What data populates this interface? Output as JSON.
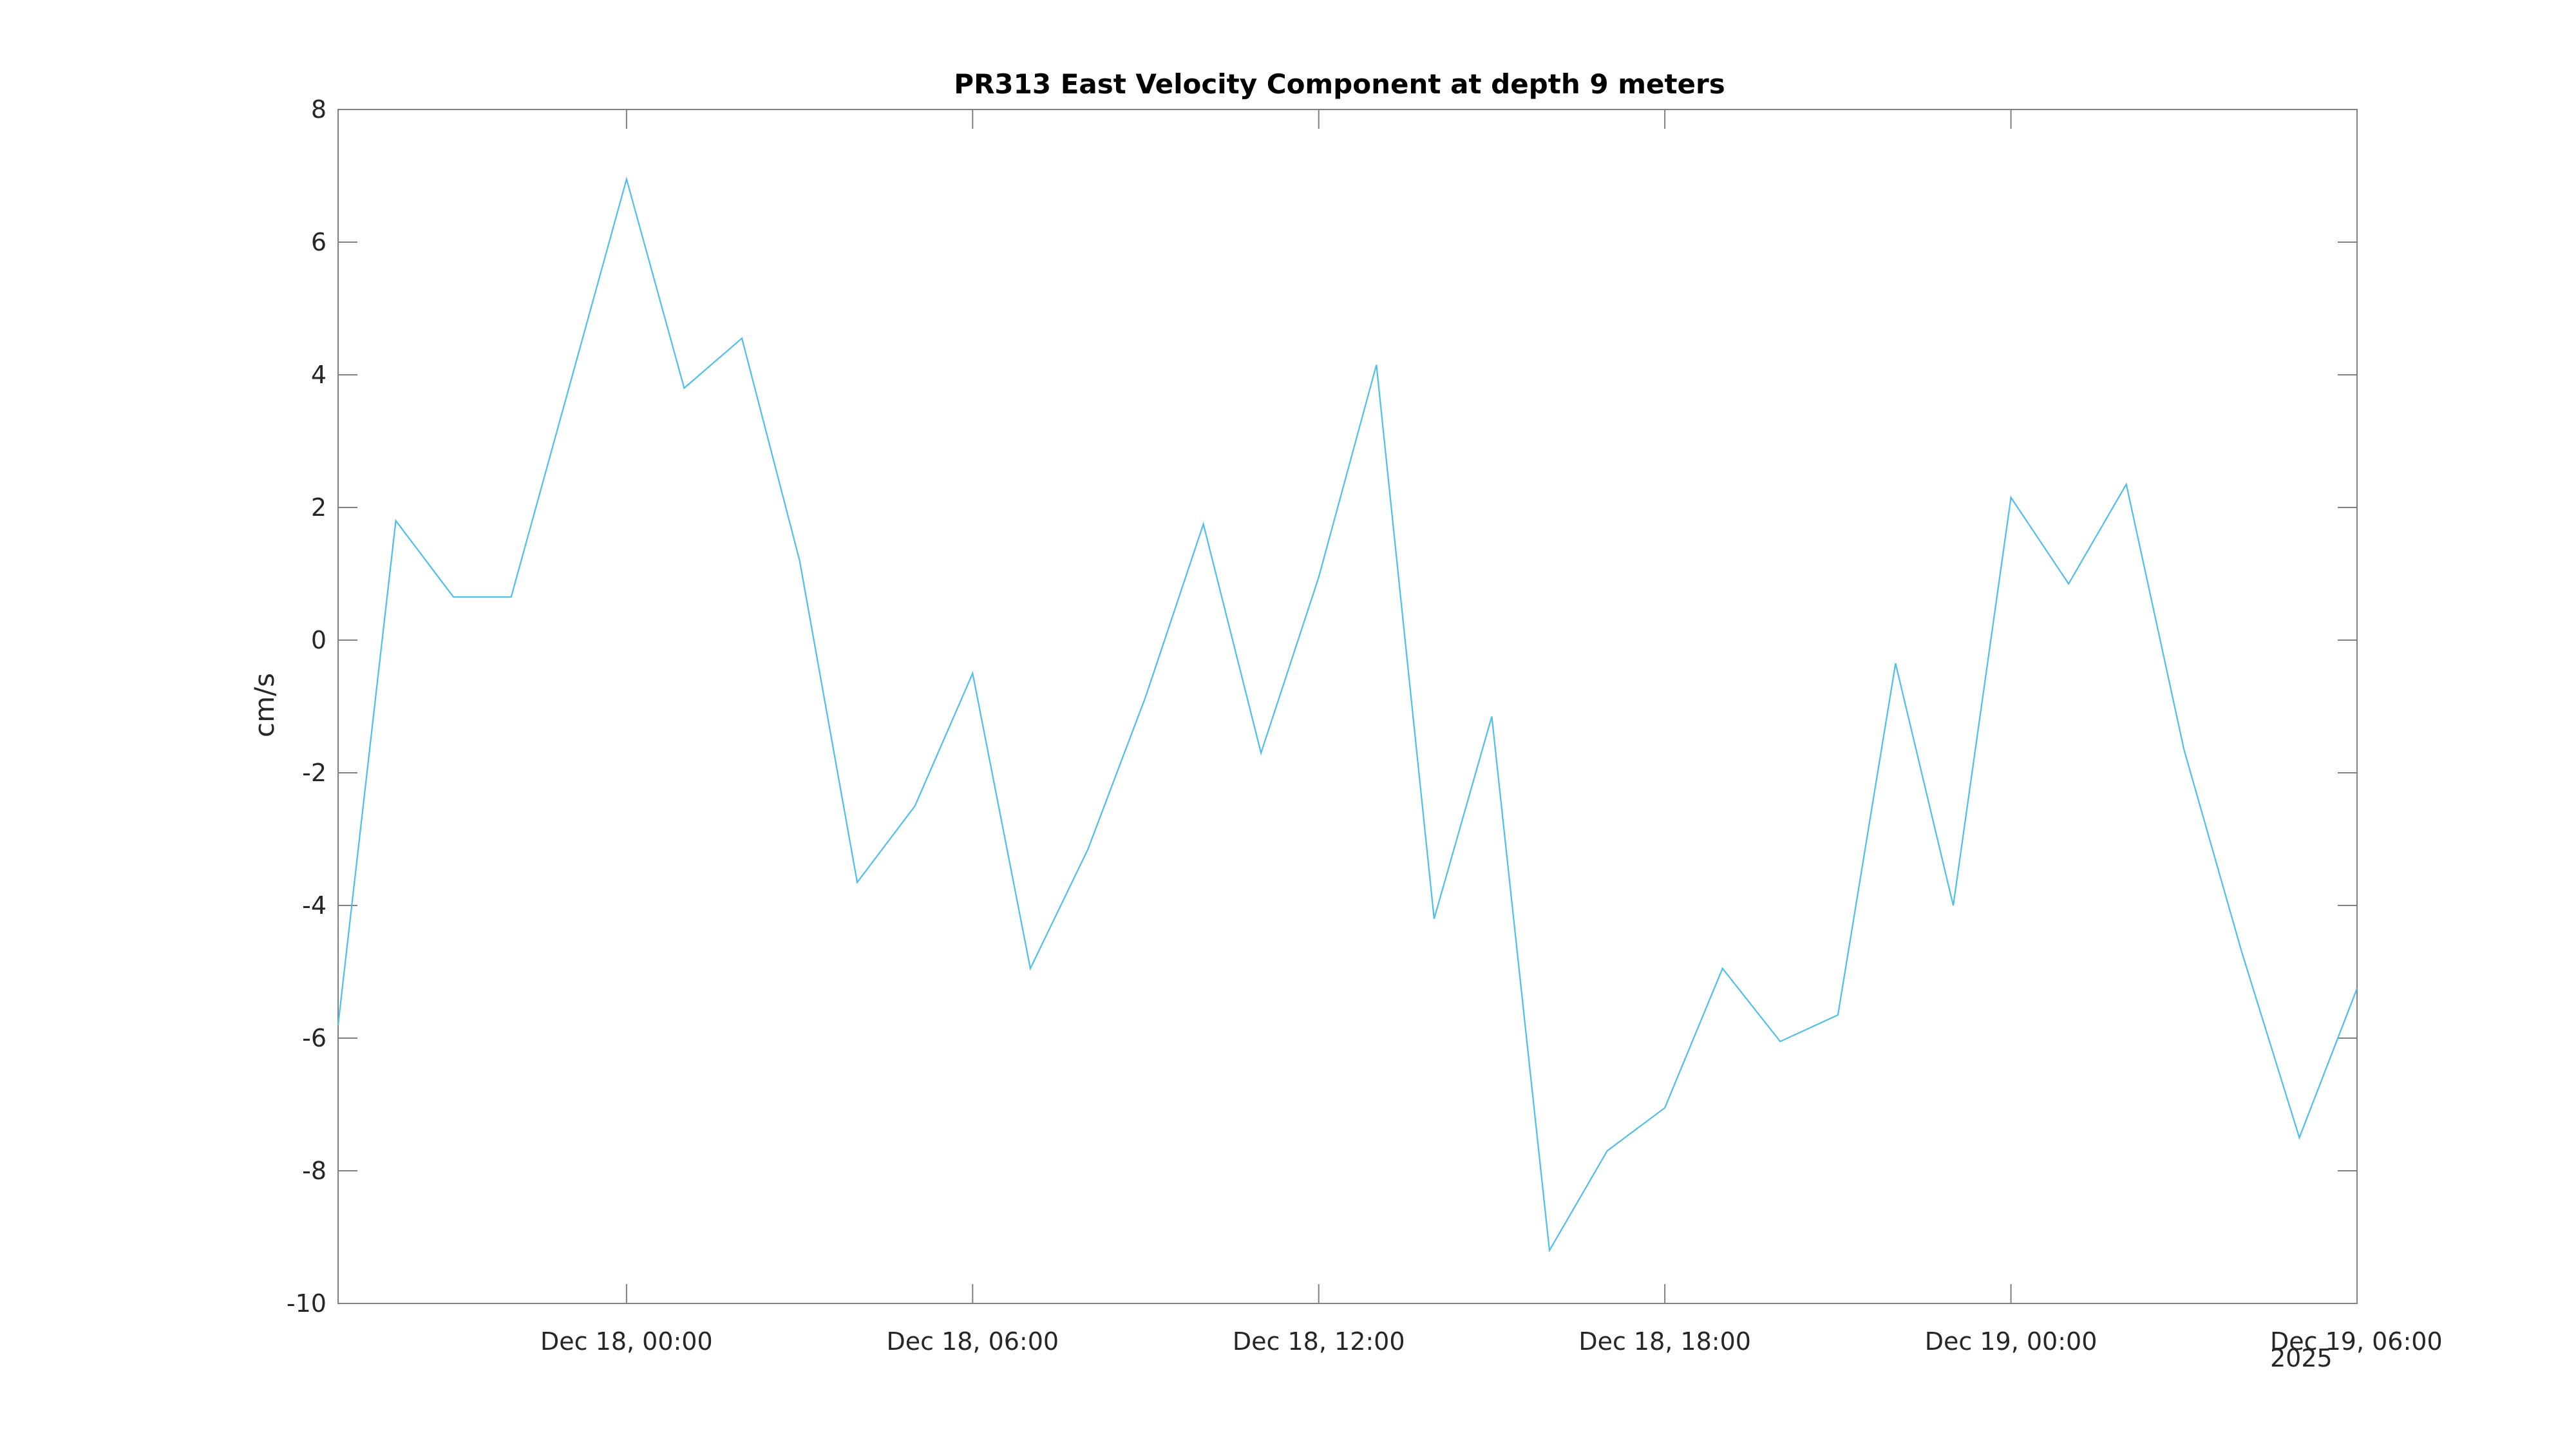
{
  "chart_data": {
    "type": "line",
    "title": "PR313 East Velocity Component at depth 9 meters",
    "xlabel": "",
    "ylabel": "cm/s",
    "year_label": "2025",
    "xlim": [
      "2025-12-17 19:00",
      "2025-12-19 06:00"
    ],
    "ylim": [
      -10,
      8
    ],
    "grid": false,
    "x_ticks": [
      {
        "value": "2025-12-18 00:00",
        "label": "Dec 18, 00:00"
      },
      {
        "value": "2025-12-18 06:00",
        "label": "Dec 18, 06:00"
      },
      {
        "value": "2025-12-18 12:00",
        "label": "Dec 18, 12:00"
      },
      {
        "value": "2025-12-18 18:00",
        "label": "Dec 18, 18:00"
      },
      {
        "value": "2025-12-19 00:00",
        "label": "Dec 19, 00:00"
      },
      {
        "value": "2025-12-19 06:00",
        "label": "Dec 19, 06:00"
      }
    ],
    "y_ticks": [
      -10,
      -8,
      -6,
      -4,
      -2,
      0,
      2,
      4,
      6,
      8
    ],
    "line_color": "#4DBEEE",
    "series": [
      {
        "x": [
          "2025-12-17 19:00",
          "2025-12-17 22:00",
          "2025-12-18 00:00",
          "2025-12-18 01:00",
          "2025-12-18 02:00",
          "2025-12-18 03:00",
          "2025-12-18 04:00",
          "2025-12-18 05:00",
          "2025-12-18 06:00",
          "2025-12-18 07:00",
          "2025-12-18 08:00",
          "2025-12-18 09:00",
          "2025-12-18 10:00",
          "2025-12-18 11:00",
          "2025-12-18 12:00",
          "2025-12-18 13:00",
          "2025-12-18 14:00",
          "2025-12-18 15:00",
          "2025-12-18 16:00",
          "2025-12-18 17:00",
          "2025-12-18 18:00",
          "2025-12-18 19:00",
          "2025-12-18 20:00",
          "2025-12-18 21:00",
          "2025-12-18 22:00",
          "2025-12-18 23:00",
          "2025-12-19 00:00",
          "2025-12-19 01:00",
          "2025-12-19 02:00",
          "2025-12-19 03:00",
          "2025-12-19 04:00",
          "2025-12-19 05:00",
          "2025-12-19 06:00"
        ],
        "y": [
          -5.8,
          0.65,
          6.95,
          3.8,
          4.55,
          1.2,
          -3.65,
          -2.5,
          -0.5,
          -4.95,
          -3.15,
          -0.85,
          1.75,
          -1.7,
          0.95,
          4.15,
          -4.2,
          -1.15,
          -9.2,
          -7.7,
          -7.05,
          -4.95,
          -6.05,
          -5.65,
          -0.35,
          -4.0,
          2.15,
          0.85,
          2.35,
          -1.65,
          -4.7,
          -7.5,
          -5.25
        ]
      }
    ],
    "extra_points": [
      {
        "x": "2025-12-17 20:00",
        "y": 1.8
      },
      {
        "x": "2025-12-17 21:00",
        "y": 0.65
      }
    ]
  }
}
